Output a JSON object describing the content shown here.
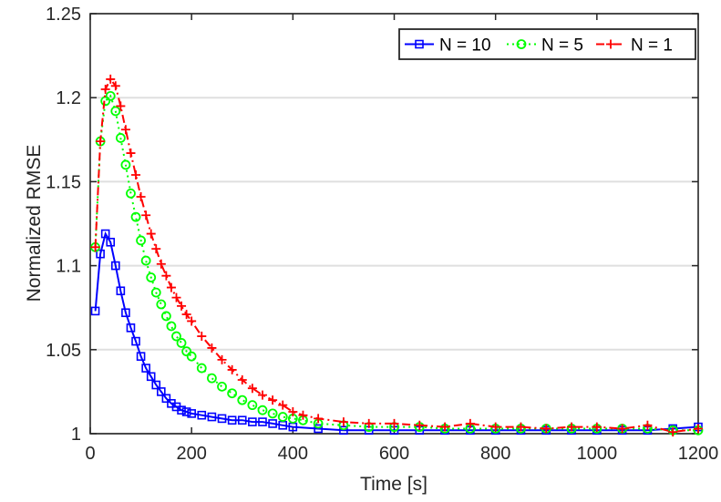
{
  "chart_data": {
    "type": "line",
    "title": "",
    "xlabel": "Time [s]",
    "ylabel": "Normalized RMSE",
    "xlim": [
      0,
      1200
    ],
    "ylim": [
      1,
      1.25
    ],
    "xticks": [
      0,
      200,
      400,
      600,
      800,
      1000,
      1200
    ],
    "xtick_labels": [
      "0",
      "200",
      "400",
      "600",
      "800",
      "1000",
      "1200"
    ],
    "yticks": [
      1,
      1.05,
      1.1,
      1.15,
      1.2,
      1.25
    ],
    "ytick_labels": [
      "1",
      "1.05",
      "1.1",
      "1.15",
      "1.2",
      "1.25"
    ],
    "grid": "horizontal",
    "legend_position": "top-right",
    "legend_orientation": "horizontal",
    "series": [
      {
        "name": "N = 10",
        "color": "#0000ff",
        "line_style": "solid",
        "marker": "square",
        "points": [
          [
            10,
            1.073
          ],
          [
            20,
            1.107
          ],
          [
            30,
            1.119
          ],
          [
            40,
            1.114
          ],
          [
            50,
            1.1
          ],
          [
            60,
            1.085
          ],
          [
            70,
            1.072
          ],
          [
            80,
            1.063
          ],
          [
            90,
            1.055
          ],
          [
            100,
            1.046
          ],
          [
            110,
            1.039
          ],
          [
            120,
            1.034
          ],
          [
            130,
            1.029
          ],
          [
            140,
            1.025
          ],
          [
            150,
            1.021
          ],
          [
            160,
            1.018
          ],
          [
            170,
            1.016
          ],
          [
            180,
            1.014
          ],
          [
            190,
            1.013
          ],
          [
            200,
            1.012
          ],
          [
            220,
            1.011
          ],
          [
            240,
            1.01
          ],
          [
            260,
            1.009
          ],
          [
            280,
            1.008
          ],
          [
            300,
            1.008
          ],
          [
            320,
            1.007
          ],
          [
            340,
            1.007
          ],
          [
            360,
            1.006
          ],
          [
            380,
            1.005
          ],
          [
            400,
            1.004
          ],
          [
            450,
            1.003
          ],
          [
            500,
            1.002
          ],
          [
            550,
            1.002
          ],
          [
            600,
            1.002
          ],
          [
            650,
            1.002
          ],
          [
            700,
            1.002
          ],
          [
            750,
            1.002
          ],
          [
            800,
            1.002
          ],
          [
            850,
            1.002
          ],
          [
            900,
            1.002
          ],
          [
            950,
            1.002
          ],
          [
            1000,
            1.002
          ],
          [
            1050,
            1.002
          ],
          [
            1100,
            1.002
          ],
          [
            1150,
            1.003
          ],
          [
            1200,
            1.004
          ]
        ]
      },
      {
        "name": "N = 5",
        "color": "#00ff00",
        "line_style": "dotted",
        "marker": "circle",
        "points": [
          [
            10,
            1.111
          ],
          [
            20,
            1.174
          ],
          [
            30,
            1.198
          ],
          [
            40,
            1.201
          ],
          [
            50,
            1.192
          ],
          [
            60,
            1.176
          ],
          [
            70,
            1.16
          ],
          [
            80,
            1.143
          ],
          [
            90,
            1.129
          ],
          [
            100,
            1.115
          ],
          [
            110,
            1.103
          ],
          [
            120,
            1.093
          ],
          [
            130,
            1.084
          ],
          [
            140,
            1.077
          ],
          [
            150,
            1.07
          ],
          [
            160,
            1.064
          ],
          [
            170,
            1.058
          ],
          [
            180,
            1.054
          ],
          [
            190,
            1.049
          ],
          [
            200,
            1.046
          ],
          [
            220,
            1.039
          ],
          [
            240,
            1.033
          ],
          [
            260,
            1.028
          ],
          [
            280,
            1.024
          ],
          [
            300,
            1.02
          ],
          [
            320,
            1.017
          ],
          [
            340,
            1.014
          ],
          [
            360,
            1.012
          ],
          [
            380,
            1.01
          ],
          [
            400,
            1.009
          ],
          [
            420,
            1.008
          ],
          [
            450,
            1.006
          ],
          [
            500,
            1.005
          ],
          [
            550,
            1.004
          ],
          [
            600,
            1.004
          ],
          [
            650,
            1.004
          ],
          [
            700,
            1.003
          ],
          [
            750,
            1.003
          ],
          [
            800,
            1.003
          ],
          [
            850,
            1.003
          ],
          [
            900,
            1.003
          ],
          [
            950,
            1.003
          ],
          [
            1000,
            1.003
          ],
          [
            1050,
            1.003
          ],
          [
            1100,
            1.003
          ],
          [
            1150,
            1.002
          ],
          [
            1200,
            1.002
          ]
        ]
      },
      {
        "name": "N = 1",
        "color": "#ff0000",
        "line_style": "dashdot",
        "marker": "plus",
        "points": [
          [
            10,
            1.111
          ],
          [
            20,
            1.174
          ],
          [
            30,
            1.205
          ],
          [
            40,
            1.211
          ],
          [
            50,
            1.207
          ],
          [
            60,
            1.195
          ],
          [
            70,
            1.181
          ],
          [
            80,
            1.167
          ],
          [
            90,
            1.154
          ],
          [
            100,
            1.141
          ],
          [
            110,
            1.13
          ],
          [
            120,
            1.119
          ],
          [
            130,
            1.11
          ],
          [
            140,
            1.101
          ],
          [
            150,
            1.094
          ],
          [
            160,
            1.087
          ],
          [
            170,
            1.081
          ],
          [
            180,
            1.076
          ],
          [
            190,
            1.071
          ],
          [
            200,
            1.067
          ],
          [
            220,
            1.058
          ],
          [
            240,
            1.051
          ],
          [
            260,
            1.044
          ],
          [
            280,
            1.038
          ],
          [
            300,
            1.032
          ],
          [
            320,
            1.027
          ],
          [
            340,
            1.023
          ],
          [
            360,
            1.02
          ],
          [
            380,
            1.017
          ],
          [
            400,
            1.013
          ],
          [
            420,
            1.011
          ],
          [
            450,
            1.009
          ],
          [
            500,
            1.007
          ],
          [
            550,
            1.006
          ],
          [
            600,
            1.006
          ],
          [
            650,
            1.005
          ],
          [
            700,
            1.004
          ],
          [
            750,
            1.006
          ],
          [
            800,
            1.004
          ],
          [
            850,
            1.004
          ],
          [
            900,
            1.003
          ],
          [
            950,
            1.004
          ],
          [
            1000,
            1.004
          ],
          [
            1050,
            1.003
          ],
          [
            1100,
            1.005
          ],
          [
            1150,
            1.001
          ],
          [
            1200,
            1.003
          ]
        ]
      }
    ]
  }
}
